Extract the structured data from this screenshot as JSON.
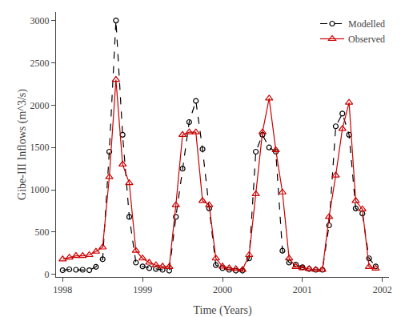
{
  "chart_data": {
    "type": "line",
    "xlabel": "Time (Years)",
    "ylabel": "Gibe-III Inflows (m^3/s)",
    "x": [
      1998,
      1998.0833333333333,
      1998.1666666666667,
      1998.25,
      1998.3333333333333,
      1998.4166666666667,
      1998.5,
      1998.5833333333333,
      1998.6666666666667,
      1998.75,
      1998.8333333333333,
      1998.9166666666667,
      1999,
      1999.0833333333333,
      1999.1666666666667,
      1999.25,
      1999.3333333333333,
      1999.4166666666667,
      1999.5,
      1999.5833333333333,
      1999.6666666666667,
      1999.75,
      1999.8333333333333,
      1999.9166666666667,
      2000,
      2000.0833333333333,
      2000.1666666666667,
      2000.25,
      2000.3333333333333,
      2000.4166666666667,
      2000.5,
      2000.5833333333333,
      2000.6666666666667,
      2000.75,
      2000.8333333333333,
      2000.9166666666667,
      2001,
      2001.0833333333333,
      2001.1666666666667,
      2001.25,
      2001.3333333333333,
      2001.4166666666667,
      2001.5,
      2001.5833333333333,
      2001.6666666666667,
      2001.75,
      2001.8333333333333,
      2001.9166666666667
    ],
    "series": [
      {
        "name": "Modelled",
        "color": "#000000",
        "marker": "circle",
        "line_style": "dashed",
        "values": [
          50,
          60,
          55,
          55,
          50,
          90,
          180,
          1450,
          3000,
          1650,
          680,
          140,
          95,
          75,
          65,
          55,
          45,
          680,
          1250,
          1800,
          2050,
          1480,
          780,
          110,
          75,
          55,
          45,
          45,
          190,
          1450,
          1650,
          1500,
          1450,
          280,
          140,
          115,
          85,
          65,
          55,
          55,
          580,
          1750,
          1900,
          1650,
          780,
          720,
          190,
          95
        ]
      },
      {
        "name": "Observed",
        "color": "#cc0000",
        "marker": "triangle",
        "line_style": "solid",
        "values": [
          180,
          200,
          220,
          220,
          230,
          270,
          320,
          1150,
          2300,
          1300,
          1080,
          280,
          190,
          140,
          110,
          95,
          90,
          820,
          1650,
          1680,
          1680,
          870,
          820,
          190,
          95,
          75,
          65,
          55,
          230,
          950,
          1680,
          2080,
          1470,
          970,
          190,
          90,
          75,
          65,
          55,
          55,
          680,
          1170,
          1720,
          2030,
          870,
          770,
          90,
          70
        ]
      }
    ],
    "xlim": [
      1997.917,
      2002.083
    ],
    "ylim": [
      -30,
      3100
    ],
    "xticks": [
      1998,
      1999,
      2000,
      2001,
      2002
    ],
    "yticks": [
      0,
      500,
      1000,
      1500,
      2000,
      2500,
      3000
    ],
    "grid": false,
    "legend": "upper right"
  }
}
